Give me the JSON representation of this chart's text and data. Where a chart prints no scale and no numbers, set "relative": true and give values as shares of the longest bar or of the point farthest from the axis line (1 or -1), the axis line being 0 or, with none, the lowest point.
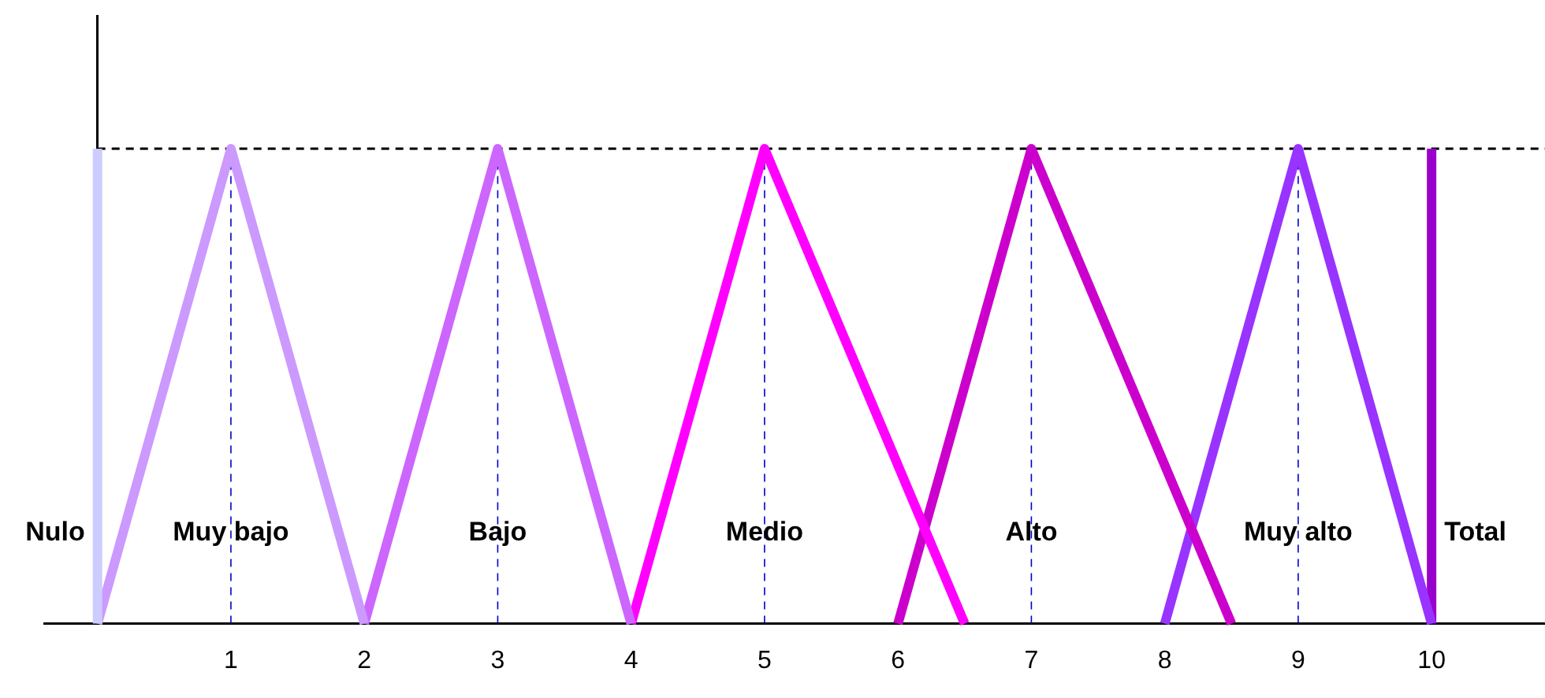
{
  "chart_data": {
    "type": "line",
    "relative": true,
    "grid": false,
    "legend": false,
    "marker": "none",
    "line_style": "solid",
    "xlim": [
      -0.4,
      10.85
    ],
    "xticks": [
      1,
      2,
      3,
      4,
      5,
      6,
      7,
      8,
      9,
      10
    ],
    "series": [
      {
        "name": "Nulo",
        "color": "#ccccff",
        "x": [
          0,
          0
        ],
        "values": [
          0,
          1
        ]
      },
      {
        "name": "Muy bajo",
        "color": "#cc99ff",
        "x": [
          0,
          1,
          2
        ],
        "values": [
          0,
          1,
          0
        ]
      },
      {
        "name": "Bajo",
        "color": "#cc66ff",
        "x": [
          2,
          3,
          4
        ],
        "values": [
          0,
          1,
          0
        ]
      },
      {
        "name": "Medio",
        "color": "#ff00ff",
        "x": [
          4,
          5,
          6.5
        ],
        "values": [
          0,
          1,
          0
        ]
      },
      {
        "name": "Alto",
        "color": "#cc00cc",
        "x": [
          6,
          7,
          8.5
        ],
        "values": [
          0,
          1,
          0
        ]
      },
      {
        "name": "Muy alto",
        "color": "#9933ff",
        "x": [
          8,
          9,
          10
        ],
        "values": [
          0,
          1,
          0
        ]
      },
      {
        "name": "Total",
        "color": "#9900cc",
        "x": [
          10,
          10
        ],
        "values": [
          0,
          1
        ]
      }
    ],
    "ref_lines": [
      {
        "axis": "y",
        "value": 1,
        "color": "#000000",
        "line_style": "dashed"
      },
      {
        "axis": "x",
        "value": 1,
        "color": "#0000cc",
        "line_style": "dashed"
      },
      {
        "axis": "x",
        "value": 3,
        "color": "#0000cc",
        "line_style": "dashed"
      },
      {
        "axis": "x",
        "value": 5,
        "color": "#0000cc",
        "line_style": "dashed"
      },
      {
        "axis": "x",
        "value": 7,
        "color": "#0000cc",
        "line_style": "dashed"
      },
      {
        "axis": "x",
        "value": 9,
        "color": "#0000cc",
        "line_style": "dashed"
      }
    ]
  }
}
